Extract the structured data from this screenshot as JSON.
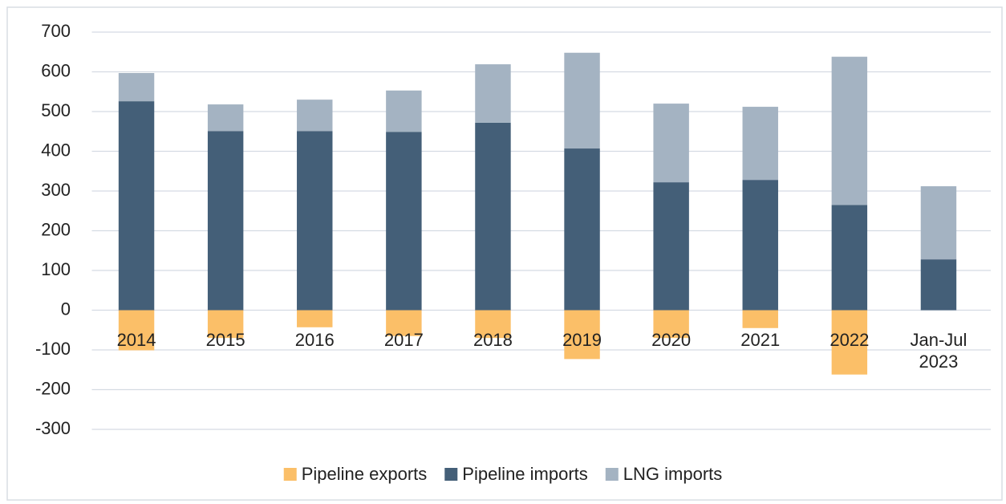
{
  "chart_data": {
    "type": "stacked_bar",
    "categories": [
      "2014",
      "2015",
      "2016",
      "2017",
      "2018",
      "2019",
      "2020",
      "2021",
      "2022",
      "Jan-Jul 2023"
    ],
    "series": [
      {
        "name": "Pipeline exports",
        "color": "#fbbf68",
        "values": [
          -101,
          -70,
          -43,
          -65,
          -70,
          -123,
          -70,
          -45,
          -162,
          0
        ]
      },
      {
        "name": "Pipeline imports",
        "color": "#445f78",
        "values": [
          526,
          451,
          451,
          449,
          472,
          407,
          322,
          328,
          265,
          128
        ]
      },
      {
        "name": "LNG imports",
        "color": "#a4b3c2",
        "values": [
          71,
          67,
          79,
          104,
          147,
          241,
          198,
          184,
          373,
          184
        ]
      }
    ],
    "ylim": [
      -300,
      700
    ],
    "yticks": [
      -300,
      -200,
      -100,
      0,
      100,
      200,
      300,
      400,
      500,
      600,
      700
    ],
    "grid": true,
    "legend": "bottom"
  }
}
